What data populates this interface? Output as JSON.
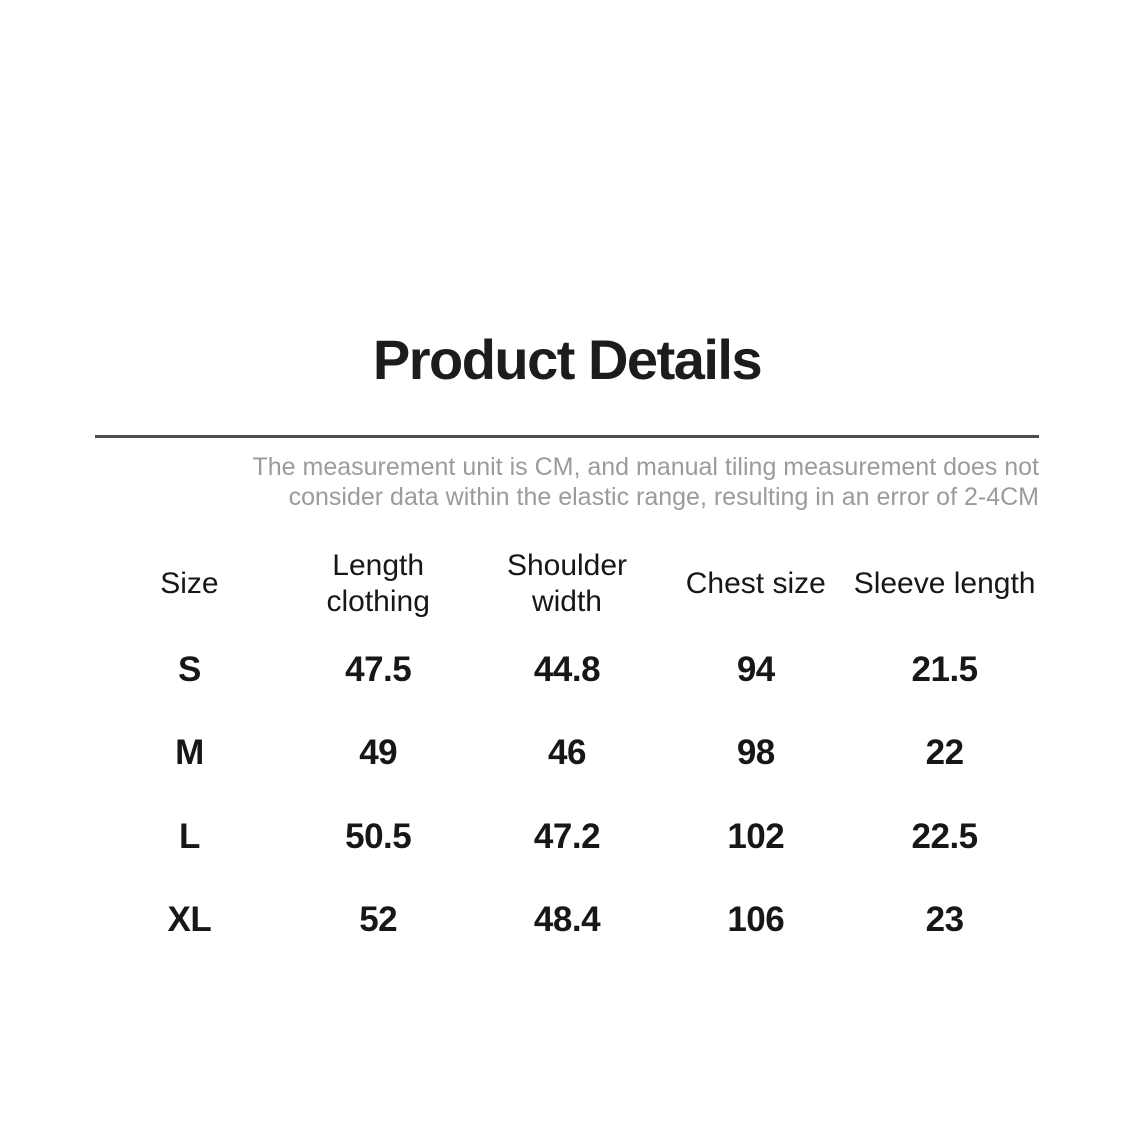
{
  "page": {
    "title": "Product Details",
    "note": "The measurement unit is CM, and manual tiling measurement does not\nconsider data within the elastic range, resulting in an error of 2-4CM"
  },
  "size_chart": {
    "columns": [
      "Size",
      "Length\nclothing",
      "Shoulder\nwidth",
      "Chest size",
      "Sleeve length"
    ],
    "rows": [
      {
        "size": "S",
        "values": [
          "47.5",
          "44.8",
          "94",
          "21.5"
        ]
      },
      {
        "size": "M",
        "values": [
          "49",
          "46",
          "98",
          "22"
        ]
      },
      {
        "size": "L",
        "values": [
          "50.5",
          "47.2",
          "102",
          "22.5"
        ]
      },
      {
        "size": "XL",
        "values": [
          "52",
          "48.4",
          "106",
          "23"
        ]
      }
    ]
  },
  "colors": {
    "background": "#ffffff",
    "title_text": "#1c1c1e",
    "divider": "#4d4d4d",
    "note_text": "#9b9b9b",
    "table_text": "#17171a"
  }
}
